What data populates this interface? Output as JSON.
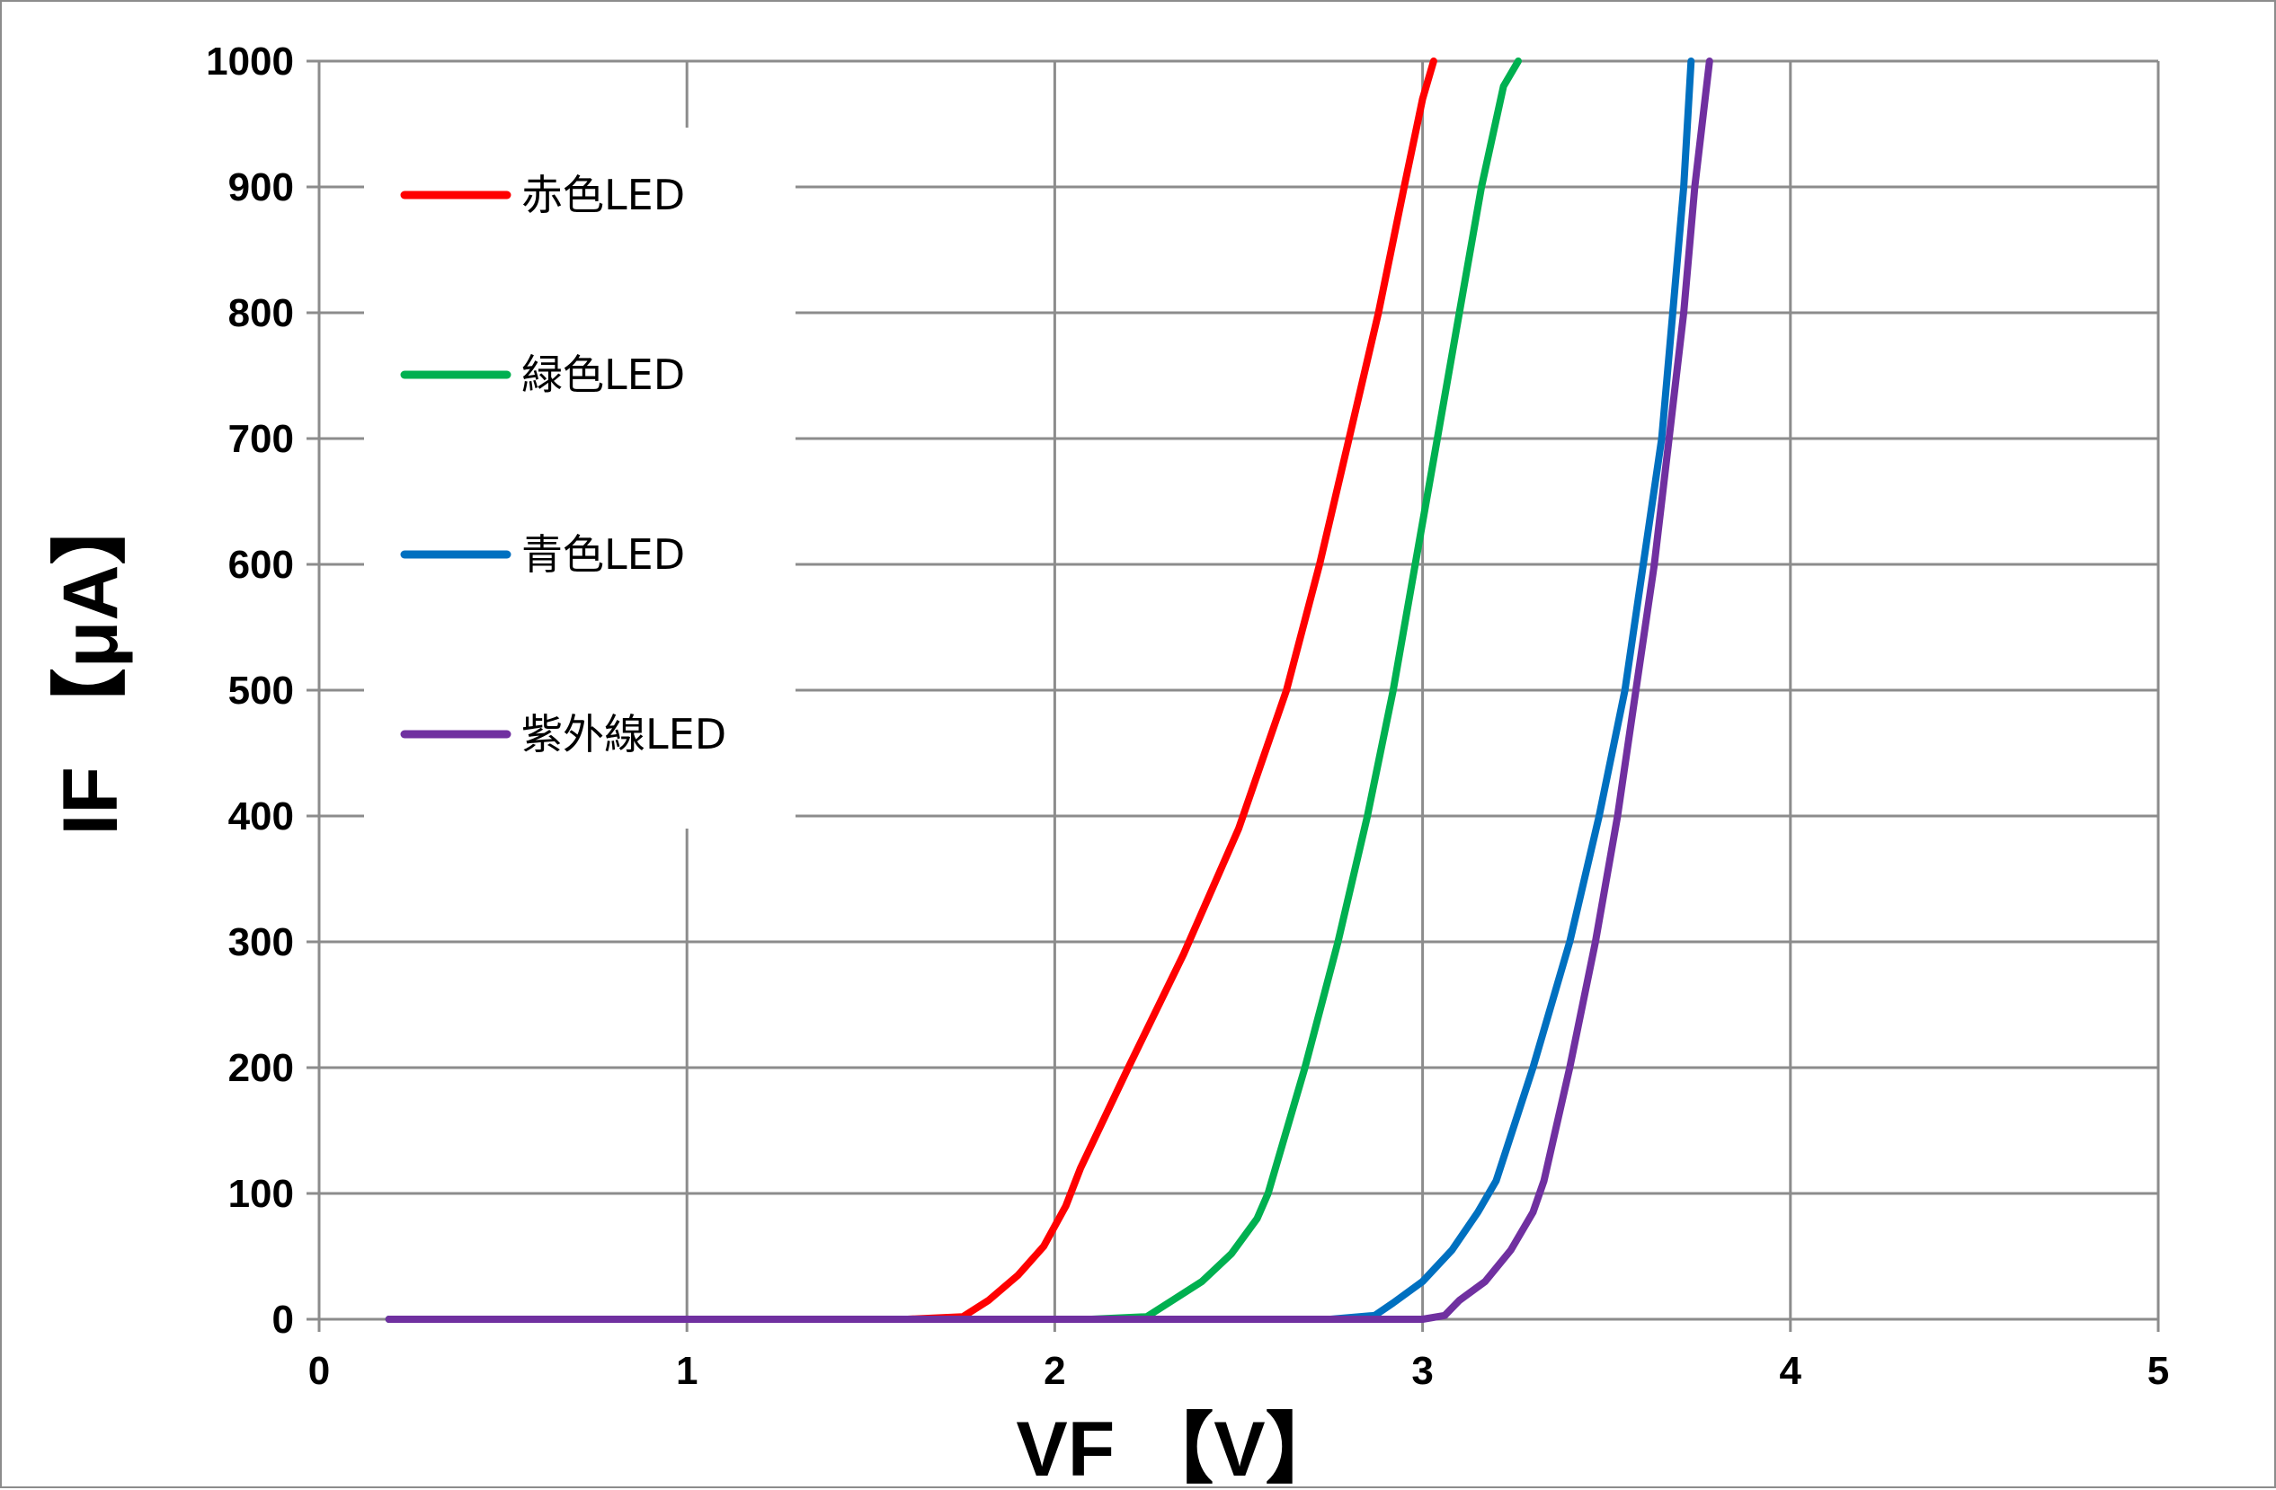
{
  "chart_data": {
    "type": "line",
    "xlabel": "VF 【V】",
    "ylabel": "IF 【μA】",
    "xlim": [
      0,
      5
    ],
    "ylim": [
      0,
      1000
    ],
    "x_ticks": [
      "0",
      "1",
      "2",
      "3",
      "4",
      "5"
    ],
    "y_ticks": [
      "0",
      "100",
      "200",
      "300",
      "400",
      "500",
      "600",
      "700",
      "800",
      "900",
      "1000"
    ],
    "grid": true,
    "legend_position": "top-left",
    "series": [
      {
        "name": "赤色LED",
        "color": "#ff0000",
        "points": [
          [
            0.19,
            0
          ],
          [
            1.6,
            0
          ],
          [
            1.75,
            2
          ],
          [
            1.82,
            15
          ],
          [
            1.9,
            35
          ],
          [
            1.97,
            58
          ],
          [
            2.03,
            90
          ],
          [
            2.07,
            120
          ],
          [
            2.2,
            200
          ],
          [
            2.35,
            290
          ],
          [
            2.5,
            390
          ],
          [
            2.63,
            500
          ],
          [
            2.72,
            600
          ],
          [
            2.8,
            700
          ],
          [
            2.88,
            800
          ],
          [
            2.95,
            900
          ],
          [
            3.0,
            970
          ],
          [
            3.03,
            1000
          ]
        ]
      },
      {
        "name": "緑色LED",
        "color": "#00b050",
        "points": [
          [
            0.19,
            0
          ],
          [
            2.1,
            0
          ],
          [
            2.25,
            2
          ],
          [
            2.32,
            15
          ],
          [
            2.4,
            30
          ],
          [
            2.48,
            52
          ],
          [
            2.55,
            80
          ],
          [
            2.58,
            100
          ],
          [
            2.68,
            200
          ],
          [
            2.77,
            300
          ],
          [
            2.85,
            400
          ],
          [
            2.92,
            500
          ],
          [
            2.98,
            600
          ],
          [
            3.04,
            700
          ],
          [
            3.1,
            800
          ],
          [
            3.16,
            900
          ],
          [
            3.22,
            980
          ],
          [
            3.26,
            1000
          ]
        ]
      },
      {
        "name": "青色LED",
        "color": "#0070c0",
        "points": [
          [
            0.19,
            0
          ],
          [
            2.75,
            0
          ],
          [
            2.87,
            3
          ],
          [
            2.92,
            13
          ],
          [
            3.0,
            30
          ],
          [
            3.08,
            55
          ],
          [
            3.15,
            85
          ],
          [
            3.2,
            110
          ],
          [
            3.3,
            200
          ],
          [
            3.4,
            300
          ],
          [
            3.48,
            400
          ],
          [
            3.55,
            500
          ],
          [
            3.6,
            600
          ],
          [
            3.65,
            700
          ],
          [
            3.68,
            800
          ],
          [
            3.71,
            900
          ],
          [
            3.73,
            1000
          ]
        ]
      },
      {
        "name": "紫外線LED",
        "color": "#7030a0",
        "points": [
          [
            0.19,
            0
          ],
          [
            3.0,
            0
          ],
          [
            3.06,
            3
          ],
          [
            3.1,
            15
          ],
          [
            3.17,
            30
          ],
          [
            3.24,
            55
          ],
          [
            3.3,
            85
          ],
          [
            3.33,
            110
          ],
          [
            3.4,
            200
          ],
          [
            3.47,
            300
          ],
          [
            3.53,
            400
          ],
          [
            3.58,
            500
          ],
          [
            3.63,
            600
          ],
          [
            3.67,
            700
          ],
          [
            3.71,
            800
          ],
          [
            3.74,
            900
          ],
          [
            3.78,
            1000
          ]
        ]
      }
    ]
  }
}
